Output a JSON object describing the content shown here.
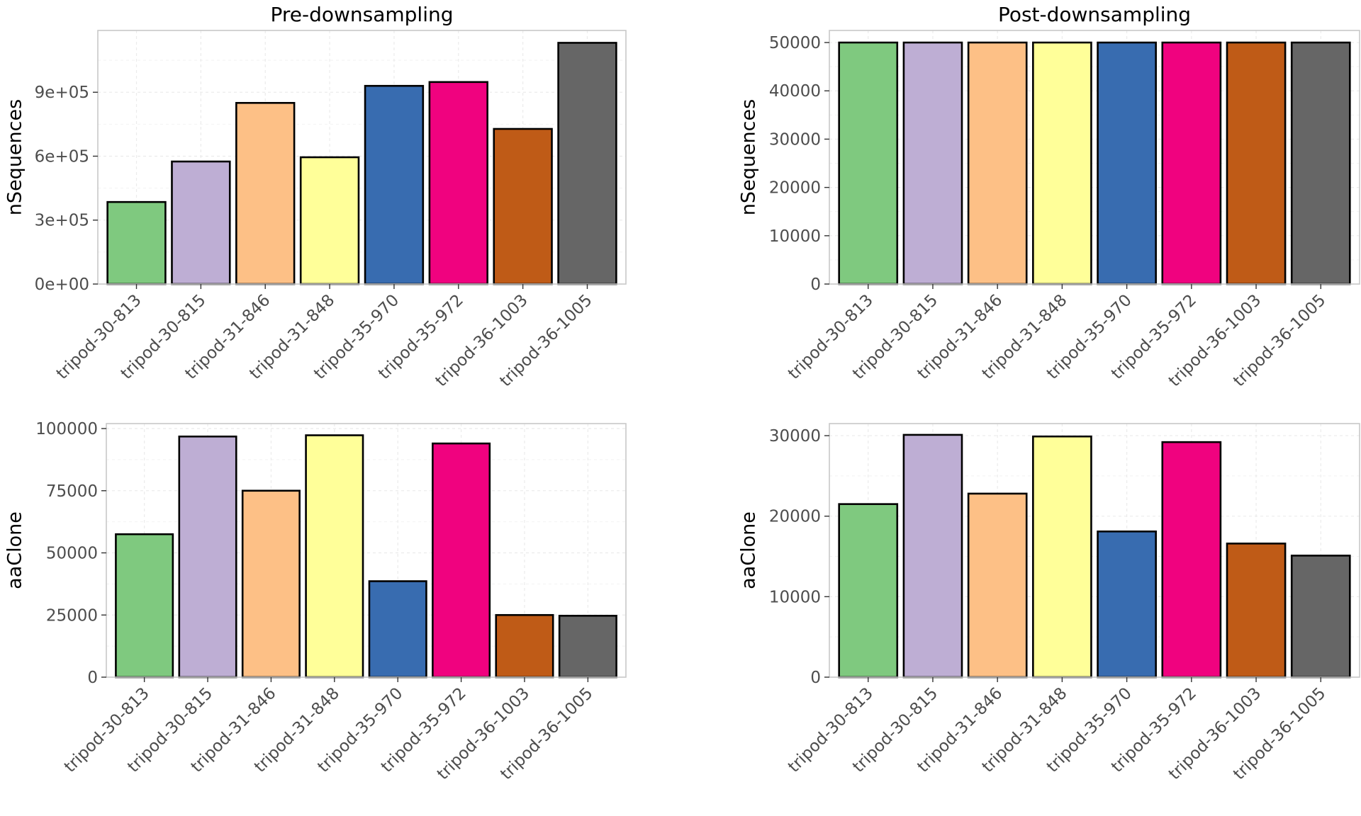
{
  "chart_data": [
    {
      "type": "bar",
      "title": "Pre-downsampling",
      "xlabel": "",
      "ylabel": "nSequences",
      "ylim": [
        0,
        1190000
      ],
      "yticks": [
        0,
        300000,
        600000,
        900000
      ],
      "ytick_labels": [
        "0e+00",
        "3e+05",
        "6e+05",
        "9e+05"
      ],
      "categories": [
        "tripod-30-813",
        "tripod-30-815",
        "tripod-31-846",
        "tripod-31-848",
        "tripod-35-970",
        "tripod-35-972",
        "tripod-36-1003",
        "tripod-36-1005"
      ],
      "values": [
        385000,
        575000,
        850000,
        595000,
        930000,
        948000,
        728000,
        1132000
      ],
      "grid": true
    },
    {
      "type": "bar",
      "title": "Post-downsampling",
      "xlabel": "",
      "ylabel": "nSequences",
      "ylim": [
        0,
        52500
      ],
      "yticks": [
        0,
        10000,
        20000,
        30000,
        40000,
        50000
      ],
      "ytick_labels": [
        "0",
        "10000",
        "20000",
        "30000",
        "40000",
        "50000"
      ],
      "categories": [
        "tripod-30-813",
        "tripod-30-815",
        "tripod-31-846",
        "tripod-31-848",
        "tripod-35-970",
        "tripod-35-972",
        "tripod-36-1003",
        "tripod-36-1005"
      ],
      "values": [
        50000,
        50000,
        50000,
        50000,
        50000,
        50000,
        50000,
        50000
      ],
      "grid": true
    },
    {
      "type": "bar",
      "title": "",
      "xlabel": "",
      "ylabel": "aaClone",
      "ylim": [
        0,
        102000
      ],
      "yticks": [
        0,
        25000,
        50000,
        75000,
        100000
      ],
      "ytick_labels": [
        "0",
        "25000",
        "50000",
        "75000",
        "100000"
      ],
      "categories": [
        "tripod-30-813",
        "tripod-30-815",
        "tripod-31-846",
        "tripod-31-848",
        "tripod-35-970",
        "tripod-35-972",
        "tripod-36-1003",
        "tripod-36-1005"
      ],
      "values": [
        57500,
        96800,
        75000,
        97300,
        38600,
        94000,
        25000,
        24700
      ],
      "grid": true
    },
    {
      "type": "bar",
      "title": "",
      "xlabel": "",
      "ylabel": "aaClone",
      "ylim": [
        0,
        31500
      ],
      "yticks": [
        0,
        10000,
        20000,
        30000
      ],
      "ytick_labels": [
        "0",
        "10000",
        "20000",
        "30000"
      ],
      "categories": [
        "tripod-30-813",
        "tripod-30-815",
        "tripod-31-846",
        "tripod-31-848",
        "tripod-35-970",
        "tripod-35-972",
        "tripod-36-1003",
        "tripod-36-1005"
      ],
      "values": [
        21500,
        30100,
        22800,
        29900,
        18100,
        29200,
        16600,
        15100
      ],
      "grid": true
    }
  ],
  "colors": [
    "#7fc97f",
    "#beaed4",
    "#fdc086",
    "#ffff99",
    "#386cb0",
    "#f0027f",
    "#bf5b17",
    "#666666"
  ]
}
